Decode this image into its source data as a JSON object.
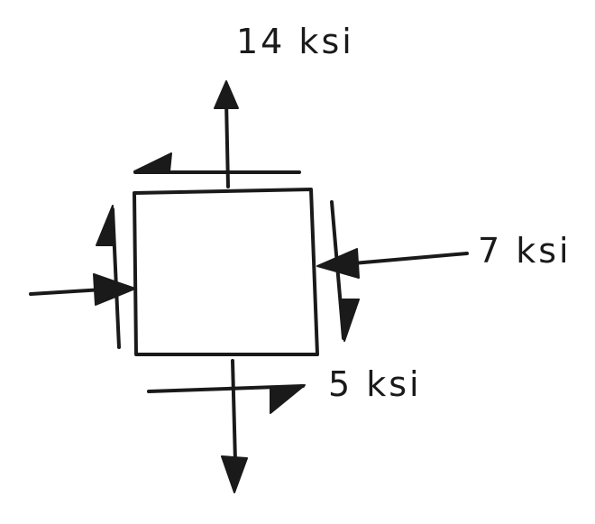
{
  "labels": {
    "normal_stress_vertical": "14 ksi",
    "normal_stress_horizontal": "7 ksi",
    "shear_stress": "5 ksi"
  },
  "colors": {
    "ink": "#1a1a1a",
    "background": "#ffffff"
  }
}
